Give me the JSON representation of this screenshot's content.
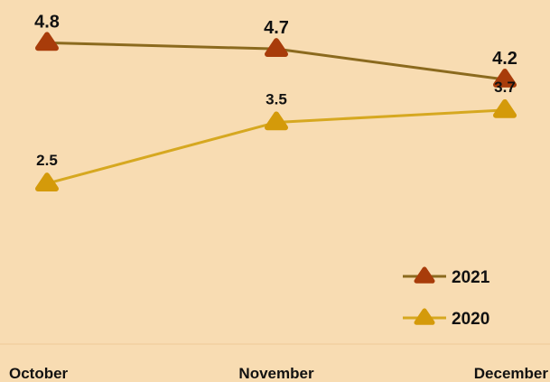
{
  "chart_data": {
    "type": "line",
    "categories": [
      "October",
      "November",
      "December"
    ],
    "series": [
      {
        "name": "2021",
        "values": [
          4.8,
          4.7,
          4.2
        ],
        "line_color": "#8b6a1e",
        "marker_color": "#a83c0a",
        "data_labels": [
          "4.8",
          "4.7",
          "4.2"
        ]
      },
      {
        "name": "2020",
        "values": [
          2.5,
          3.5,
          3.7
        ],
        "line_color": "#d6a820",
        "marker_color": "#d49a0a",
        "data_labels": [
          "2.5",
          "3.5",
          "3.7"
        ]
      }
    ],
    "title": "",
    "xlabel": "",
    "ylabel": "",
    "ylim": [
      0,
      5.5
    ],
    "y_axis_visible": false,
    "grid": false,
    "marker": "rounded-triangle",
    "legend_position": "bottom-right",
    "background_color": "#f8dcb2",
    "axis_color": "#f3d3a5"
  }
}
